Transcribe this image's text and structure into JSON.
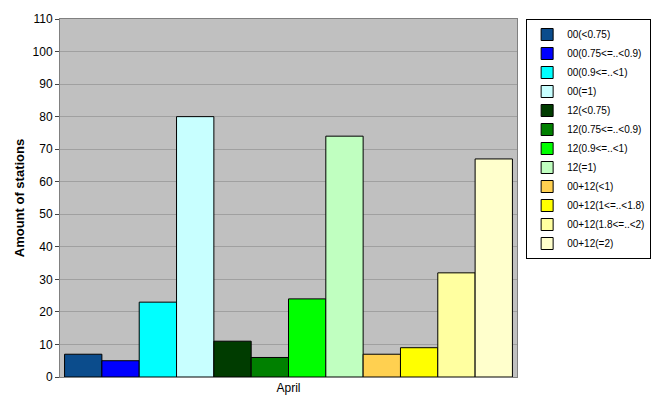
{
  "chart_data": {
    "type": "bar",
    "y_label": "Amount of stations",
    "categories": [
      "April"
    ],
    "series": [
      {
        "name": "00(<0.75)",
        "color": "#0b4c8c",
        "values": [
          7
        ]
      },
      {
        "name": "00(0.75<=..<0.9)",
        "color": "#0000ff",
        "values": [
          5
        ]
      },
      {
        "name": "00(0.9<=..<1)",
        "color": "#00ffff",
        "values": [
          23
        ]
      },
      {
        "name": "00(=1)",
        "color": "#c8ffff",
        "values": [
          80
        ]
      },
      {
        "name": "12(<0.75)",
        "color": "#003c00",
        "values": [
          11
        ]
      },
      {
        "name": "12(0.75<=..<0.9)",
        "color": "#008000",
        "values": [
          6
        ]
      },
      {
        "name": "12(0.9<=..<1)",
        "color": "#00ff00",
        "values": [
          24
        ]
      },
      {
        "name": "12(=1)",
        "color": "#c0ffc0",
        "values": [
          74
        ]
      },
      {
        "name": "00+12(<1)",
        "color": "#ffd050",
        "values": [
          7
        ]
      },
      {
        "name": "00+12(1<=..<1.8)",
        "color": "#ffff00",
        "values": [
          9
        ]
      },
      {
        "name": "00+12(1.8<=..<2)",
        "color": "#ffffa0",
        "values": [
          32
        ]
      },
      {
        "name": "00+12(=2)",
        "color": "#ffffcc",
        "values": [
          67
        ]
      }
    ],
    "ylim": [
      0,
      110
    ],
    "yticks": [
      0,
      10,
      20,
      30,
      40,
      50,
      60,
      70,
      80,
      90,
      100,
      110
    ],
    "grid": true,
    "legend": "top right"
  }
}
